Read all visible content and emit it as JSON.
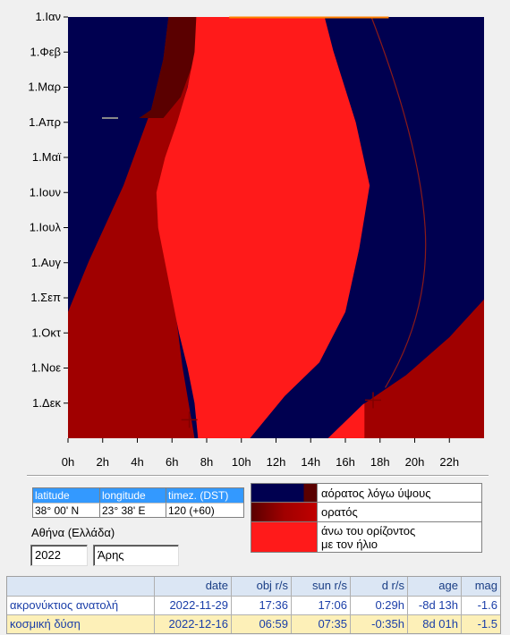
{
  "chart": {
    "months": [
      "1.Ιαν",
      "1.Φεβ",
      "1.Μαρ",
      "1.Απρ",
      "1.Μαϊ",
      "1.Ιουν",
      "1.Ιουλ",
      "1.Αυγ",
      "1.Σεπ",
      "1.Οκτ",
      "1.Νοε",
      "1.Δεκ"
    ],
    "hours": [
      "0h",
      "2h",
      "4h",
      "6h",
      "8h",
      "10h",
      "12h",
      "14h",
      "16h",
      "18h",
      "20h",
      "22h"
    ],
    "colors": {
      "invisible_altitude": "#000050",
      "visible": "#a00000",
      "sun_above_horizon": "#ff1a1a",
      "visible_dark": "#5a0000"
    }
  },
  "chart_data": {
    "type": "heatmap",
    "x_axis": {
      "unit": "hour",
      "range": [
        0,
        24
      ],
      "ticks": [
        "0h",
        "2h",
        "4h",
        "6h",
        "8h",
        "10h",
        "12h",
        "14h",
        "16h",
        "18h",
        "20h",
        "22h"
      ]
    },
    "y_axis": {
      "range": [
        "1.Ιαν",
        "31.Δεκ"
      ],
      "ticks": [
        "1.Ιαν",
        "1.Φεβ",
        "1.Μαρ",
        "1.Απρ",
        "1.Μαϊ",
        "1.Ιουν",
        "1.Ιουλ",
        "1.Αυγ",
        "1.Σεπ",
        "1.Οκτ",
        "1.Νοε",
        "1.Δεκ"
      ]
    },
    "categories": [
      "αόρατος λόγω ύψους",
      "ορατός",
      "άνω του ορίζοντος με τον ήλιο"
    ],
    "sun_rise_hours": [
      7.4,
      7.3,
      6.9,
      6.3,
      5.6,
      5.1,
      5.2,
      5.6,
      6.0,
      6.4,
      6.9,
      7.3,
      7.5
    ],
    "sun_set_hours": [
      17.2,
      17.6,
      18.2,
      18.6,
      19.0,
      19.5,
      19.7,
      19.4,
      18.8,
      18.1,
      17.4,
      17.1,
      17.1
    ],
    "markers": [
      {
        "label": "ακρονύκτιος ανατολή",
        "date": "2022-11-29",
        "hour": 17.6
      },
      {
        "label": "κοσμική δύση",
        "date": "2022-12-16",
        "hour": 7.0
      }
    ]
  },
  "location": {
    "headers": [
      "latitude",
      "longitude",
      "timez. (DST)"
    ],
    "values": [
      "38° 00' N",
      "23° 38' E",
      "120 (+60)"
    ],
    "city": "Αθήνα (Ελλάδα)",
    "year": "2022",
    "planet": "Άρης"
  },
  "legend": [
    {
      "label": "αόρατος λόγω ύψους",
      "color": "#000050"
    },
    {
      "label": "ορατός",
      "color": "#a00000"
    },
    {
      "label": "άνω του ορίζοντος\nμε τον ήλιο",
      "color": "#ff1a1a"
    }
  ],
  "events": {
    "headers": [
      "",
      "date",
      "obj r/s",
      "sun r/s",
      "d r/s",
      "age",
      "mag"
    ],
    "rows": [
      [
        "ακρονύκτιος ανατολή",
        "2022-11-29",
        "17:36",
        "17:06",
        "0:29h",
        "-8d 13h",
        "-1.6"
      ],
      [
        "κοσμική δύση",
        "2022-12-16",
        "06:59",
        "07:35",
        "-0:35h",
        "8d 01h",
        "-1.5"
      ]
    ]
  }
}
